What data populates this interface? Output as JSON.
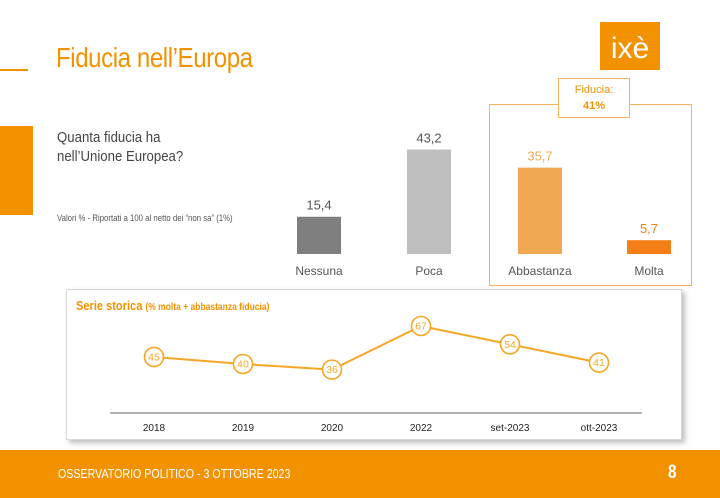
{
  "header": {
    "title": "Fiducia nell’Europa",
    "logo_text": "ixè"
  },
  "question": {
    "line1": "Quanta fiducia ha",
    "line2": "nell’Unione Europea?"
  },
  "note": "Valori % - Riportati a 100 al netto dei “non sa” (1%)",
  "trust_summary": {
    "label": "Fiducia:",
    "value": "41%"
  },
  "series_header": {
    "title": "Serie storica",
    "subtitle": "(% molta + abbastanza fiducia)"
  },
  "footer": {
    "text": "OSSERVATORIO POLITICO - 3 OTTOBRE 2023",
    "page": "8"
  },
  "colors": {
    "accent": "#f39200",
    "nessuna": "#7f7f7f",
    "poca": "#bfbfbf",
    "abbastanza": "#f0a852",
    "molta": "#f57f17",
    "line": "#f5a623"
  },
  "chart_data": [
    {
      "type": "bar",
      "categories": [
        "Nessuna",
        "Poca",
        "Abbastanza",
        "Molta"
      ],
      "values": [
        15.4,
        43.2,
        35.7,
        5.7
      ],
      "value_labels": [
        "15,4",
        "43,2",
        "35,7",
        "5,7"
      ],
      "ylim": [
        0,
        45
      ]
    },
    {
      "type": "line",
      "categories": [
        "2018",
        "2019",
        "2020",
        "2022",
        "set-2023",
        "ott-2023"
      ],
      "values": [
        45,
        40,
        36,
        67,
        54,
        41
      ],
      "ylim": [
        30,
        70
      ]
    }
  ]
}
